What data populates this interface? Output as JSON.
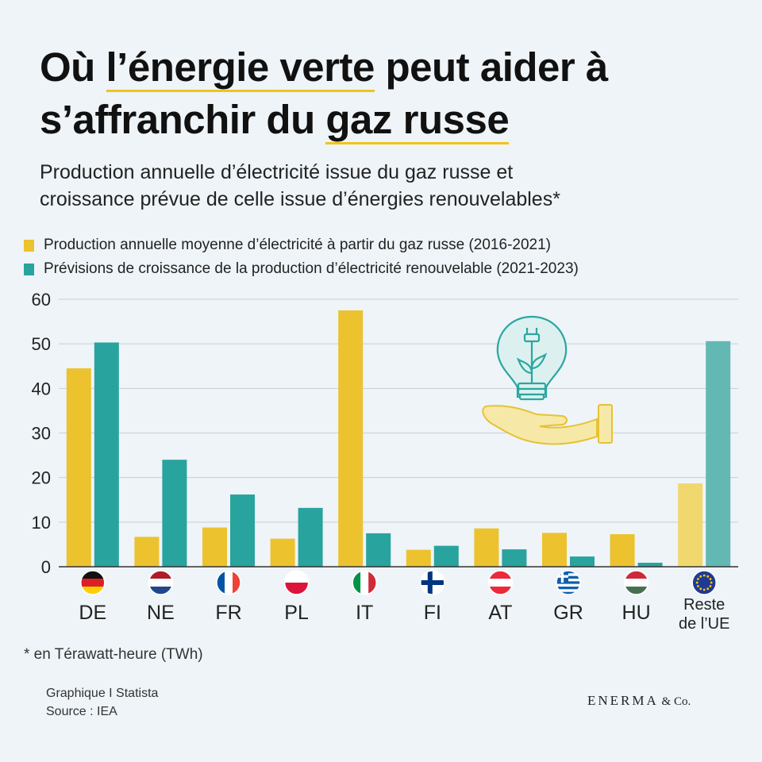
{
  "title": {
    "line1_pre": "Où ",
    "line1_hl": "l’énergie verte",
    "line1_post": " peut aider à",
    "line2_pre": "s’affranchir du ",
    "line2_hl": "gaz russe"
  },
  "subtitle": {
    "line1": "Production annuelle d’électricité issue du gaz russe et",
    "line2": "croissance prévue de celle issue d’énergies renouvelables*"
  },
  "legend": {
    "gas": "Production annuelle moyenne d’électricité à partir du gaz russe (2016-2021)",
    "renew": "Prévisions de croissance de la production d’électricité renouvelable (2021-2023)"
  },
  "colors": {
    "gas": "#ecc22e",
    "renew": "#29a39e",
    "gas_light": "#f1d86e",
    "renew_light": "#63b8b4"
  },
  "chart_data": {
    "type": "bar",
    "title": "Production annuelle d’électricité issue du gaz russe et croissance prévue de celle issue d’énergies renouvelables",
    "categories": [
      "DE",
      "NE",
      "FR",
      "PL",
      "IT",
      "FI",
      "AT",
      "GR",
      "HU",
      "Reste de l’UE"
    ],
    "category_lines": [
      [
        "DE"
      ],
      [
        "NE"
      ],
      [
        "FR"
      ],
      [
        "PL"
      ],
      [
        "IT"
      ],
      [
        "FI"
      ],
      [
        "AT"
      ],
      [
        "GR"
      ],
      [
        "HU"
      ],
      [
        "Reste",
        "de l’UE"
      ]
    ],
    "series": [
      {
        "name": "Production annuelle moyenne d’électricité à partir du gaz russe (2016-2021)",
        "values": [
          44.5,
          6.7,
          8.8,
          6.3,
          57.5,
          3.8,
          8.6,
          7.6,
          7.3,
          18.7
        ]
      },
      {
        "name": "Prévisions de croissance de la production d’électricité renouvelable (2021-2023)",
        "values": [
          50.3,
          24.0,
          16.2,
          13.2,
          7.5,
          4.7,
          3.9,
          2.3,
          0.9,
          50.6
        ]
      }
    ],
    "y_ticks": [
      0,
      10,
      20,
      30,
      40,
      50,
      60
    ],
    "ylim": [
      0,
      60
    ],
    "ylabel": "TWh",
    "xlabel": "",
    "grid": true,
    "legend_position": "top-left"
  },
  "footnote": "* en Térawatt-heure (TWh)",
  "credits": {
    "graphic": "Graphique I Statista",
    "source": "Source : IEA"
  },
  "brand": {
    "name": "ENERMA",
    "suffix": " & Co."
  }
}
